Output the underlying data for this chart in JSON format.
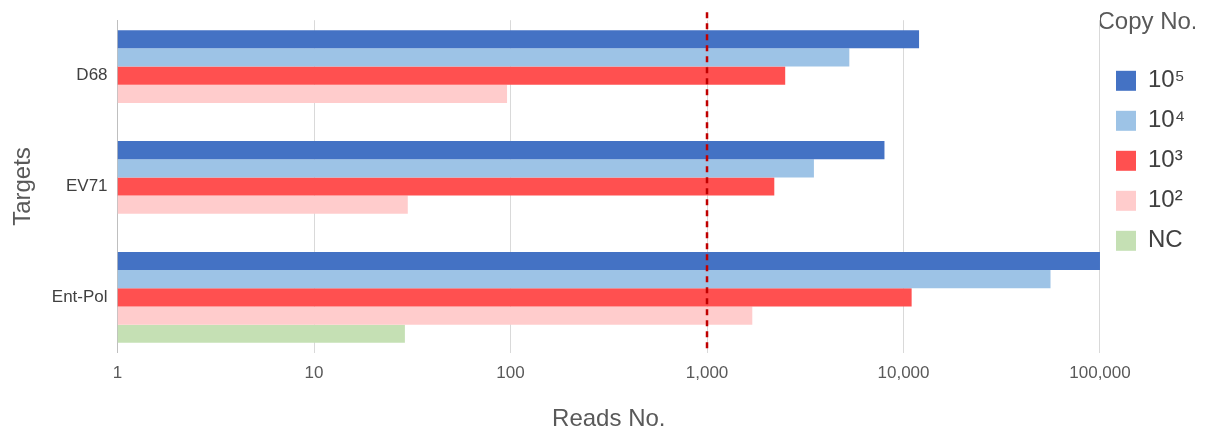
{
  "chart_data": {
    "type": "bar",
    "orientation": "horizontal",
    "xlabel": "Reads No.",
    "ylabel": "Targets",
    "legend_title": "Copy No.",
    "categories": [
      "D68",
      "EV71",
      "Ent-Pol"
    ],
    "series": [
      {
        "name": "10⁵",
        "color": "#4472c4",
        "values": [
          12000,
          8000,
          100000
        ]
      },
      {
        "name": "10⁴",
        "color": "#9dc3e6",
        "values": [
          5300,
          3500,
          56000
        ]
      },
      {
        "name": "10³",
        "color": "#ff5050",
        "values": [
          2500,
          2200,
          11000
        ]
      },
      {
        "name": "10²",
        "color": "#ffcccc",
        "values": [
          96,
          30,
          1700
        ]
      },
      {
        "name": "NC",
        "color": "#c5e0b4",
        "values": [
          null,
          null,
          29
        ]
      }
    ],
    "log": "x",
    "xlim": [
      1,
      100000
    ],
    "xticks": [
      1,
      10,
      100,
      {
        "value": 1000,
        "label": "1,000"
      },
      {
        "value": 10000,
        "label": "10,000"
      },
      {
        "value": 100000,
        "label": "100,000"
      }
    ],
    "grid": "x",
    "legend": "right",
    "ref_lines": [
      {
        "axis": "x",
        "value": 1000,
        "label": null,
        "color": "#c00000",
        "line_style": "dashed"
      }
    ]
  }
}
